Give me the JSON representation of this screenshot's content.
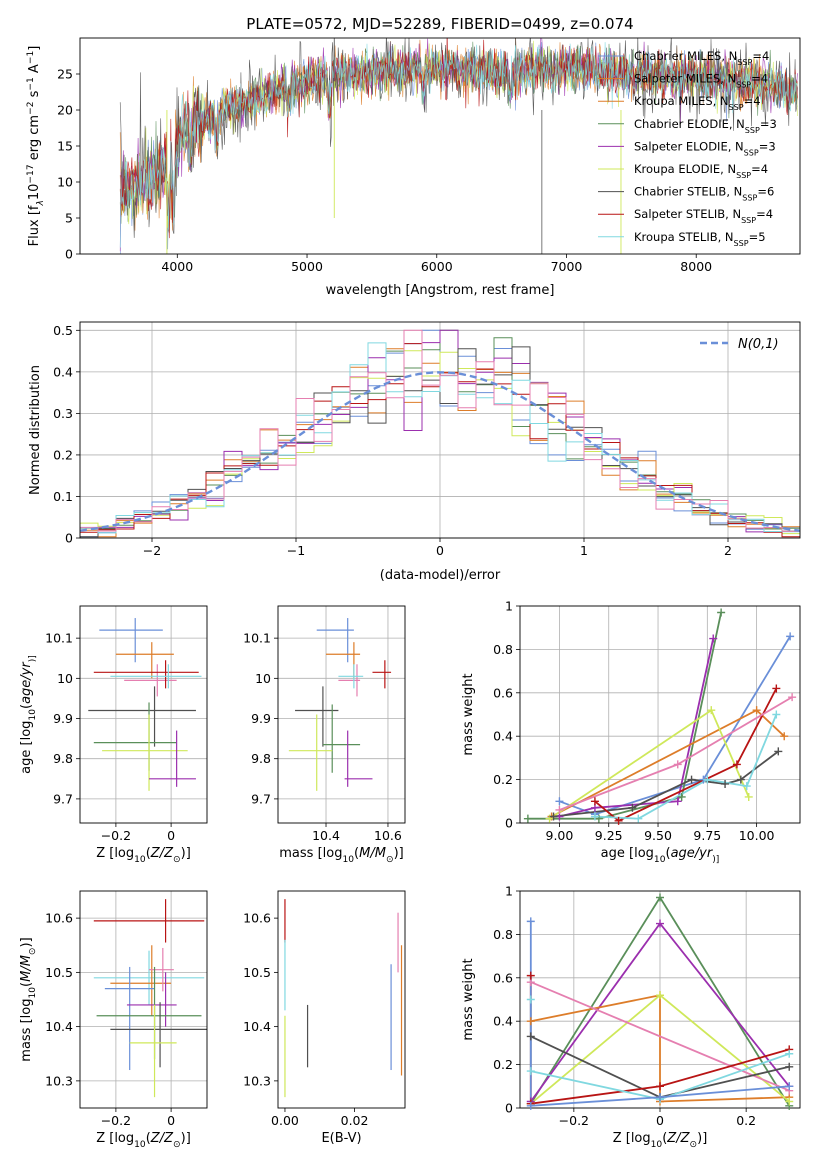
{
  "colors": {
    "blue": "#6a8fd8",
    "orange": "#dd7d2a",
    "green": "#5a8f5a",
    "purple": "#9b2fae",
    "yellow": "#cfe85a",
    "darkgray": "#505050",
    "red": "#b81414",
    "cyan": "#80d8e0",
    "pink": "#e57fb0"
  },
  "chart_data": [
    {
      "id": "spectrum",
      "type": "line",
      "title": "PLATE=0572, MJD=52289, FIBERID=0499, z=0.074",
      "xlabel": "wavelength [Angstrom, rest frame]",
      "ylabel_parts": [
        "Flux [f",
        "λ",
        "10",
        "−17",
        " erg cm",
        "−2",
        " s",
        "−1",
        " A",
        "−1",
        "]"
      ],
      "xlim": [
        3250,
        8800
      ],
      "ylim": [
        0,
        30
      ],
      "xticks": [
        4000,
        5000,
        6000,
        7000,
        8000
      ],
      "yticks": [
        0,
        5,
        10,
        15,
        20,
        25
      ],
      "grid": false,
      "legend_position": "top-right",
      "spectrum_anchors": {
        "x": [
          3560,
          3700,
          3850,
          3950,
          4050,
          4200,
          4400,
          4600,
          4800,
          5000,
          5300,
          5600,
          5900,
          6200,
          6500,
          6800,
          7100,
          7400,
          7700,
          8000,
          8300,
          8600,
          8780
        ],
        "y": [
          8.5,
          9.5,
          11,
          13,
          17,
          18.5,
          20.5,
          21.5,
          23,
          24,
          25,
          25.5,
          25.8,
          25.5,
          25,
          26,
          25.8,
          25.2,
          24.8,
          24.5,
          24,
          23.5,
          22.5
        ]
      },
      "series": [
        {
          "name_parts": [
            "Chabrier MILES, N",
            "SSP",
            "=4"
          ],
          "color": "blue"
        },
        {
          "name_parts": [
            "Salpeter MILES, N",
            "SSP",
            "=4"
          ],
          "color": "orange"
        },
        {
          "name_parts": [
            "Kroupa MILES, N",
            "SSP",
            "=4"
          ],
          "color": "orange"
        },
        {
          "name_parts": [
            "Chabrier ELODIE, N",
            "SSP",
            "=3"
          ],
          "color": "green"
        },
        {
          "name_parts": [
            "Salpeter ELODIE, N",
            "SSP",
            "=3"
          ],
          "color": "purple"
        },
        {
          "name_parts": [
            "Kroupa ELODIE, N",
            "SSP",
            "=4"
          ],
          "color": "yellow"
        },
        {
          "name_parts": [
            "Chabrier STELIB, N",
            "SSP",
            "=6"
          ],
          "color": "darkgray"
        },
        {
          "name_parts": [
            "Salpeter STELIB, N",
            "SSP",
            "=4"
          ],
          "color": "red"
        },
        {
          "name_parts": [
            "Kroupa STELIB, N",
            "SSP",
            "=5"
          ],
          "color": "cyan"
        }
      ]
    },
    {
      "id": "residuals",
      "type": "line",
      "xlabel": "(data-model)/error",
      "ylabel": "Normed distribution",
      "xlim": [
        -2.5,
        2.5
      ],
      "ylim": [
        0,
        0.52
      ],
      "xticks": [
        -2,
        -1,
        0,
        1,
        2
      ],
      "yticks": [
        0.0,
        0.1,
        0.2,
        0.3,
        0.4,
        0.5
      ],
      "grid": true,
      "legend_position": "top-right",
      "legend": "N(0,1)",
      "bin_edges_range": [
        -2.5,
        2.5
      ],
      "bins": 40,
      "normal_curve": {
        "color": "blue",
        "style": "dashed",
        "mean": 0,
        "sigma": 1
      }
    },
    {
      "id": "age-vs-Z",
      "type": "scatter",
      "xlabel_parts": [
        "Z [log",
        "10",
        "(",
        "Z/Z",
        "⊙",
        ")]"
      ],
      "ylabel_parts": [
        "age  [log",
        "10",
        "(",
        "age/yr",
        ")]"
      ],
      "xlim": [
        -0.33,
        0.13
      ],
      "ylim": [
        9.64,
        10.18
      ],
      "xticks": [
        -0.2,
        0.0
      ],
      "yticks": [
        9.7,
        9.8,
        9.9,
        10.0,
        10.1
      ],
      "grid": true,
      "points": [
        {
          "color": "blue",
          "x": -0.13,
          "y": 10.12,
          "xerr": [
            0.13,
            0.1
          ],
          "yerr": [
            0.08,
            0.03
          ]
        },
        {
          "color": "orange",
          "x": -0.07,
          "y": 10.06,
          "xerr": [
            0.13,
            0.08
          ],
          "yerr": [
            0.06,
            0.03
          ]
        },
        {
          "color": "pink",
          "x": -0.05,
          "y": 9.995,
          "xerr": [
            0.12,
            0.07
          ],
          "yerr": [
            0.04,
            0.04
          ]
        },
        {
          "color": "red",
          "x": -0.02,
          "y": 10.015,
          "xerr": [
            0.26,
            0.12
          ],
          "yerr": [
            0.04,
            0.03
          ]
        },
        {
          "color": "cyan",
          "x": -0.01,
          "y": 10.005,
          "xerr": [
            0.21,
            0.12
          ],
          "yerr": [
            0.03,
            0.03
          ]
        },
        {
          "color": "darkgray",
          "x": -0.06,
          "y": 9.92,
          "xerr": [
            0.24,
            0.15
          ],
          "yerr": [
            0.09,
            0.06
          ]
        },
        {
          "color": "green",
          "x": -0.08,
          "y": 9.84,
          "xerr": [
            0.2,
            0.1
          ],
          "yerr": [
            0.07,
            0.1
          ]
        },
        {
          "color": "yellow",
          "x": -0.08,
          "y": 9.82,
          "xerr": [
            0.17,
            0.14
          ],
          "yerr": [
            0.1,
            0.09
          ]
        },
        {
          "color": "purple",
          "x": 0.02,
          "y": 9.75,
          "xerr": [
            0.1,
            0.07
          ],
          "yerr": [
            0.02,
            0.12
          ]
        }
      ]
    },
    {
      "id": "age-vs-mass",
      "type": "scatter",
      "xlabel_parts": [
        "mass [log",
        "10",
        "(",
        "M/M",
        "⊙",
        ")]"
      ],
      "ylim": [
        9.64,
        10.18
      ],
      "xlim": [
        10.245,
        10.655
      ],
      "xticks": [
        10.4,
        10.6
      ],
      "yticks": [
        9.7,
        9.8,
        9.9,
        10.0,
        10.1
      ],
      "grid": true,
      "points": [
        {
          "color": "blue",
          "x": 10.47,
          "y": 10.12,
          "xerr": [
            0.1,
            0.02
          ],
          "yerr": [
            0.08,
            0.03
          ]
        },
        {
          "color": "orange",
          "x": 10.49,
          "y": 10.06,
          "xerr": [
            0.09,
            0.02
          ],
          "yerr": [
            0.06,
            0.03
          ]
        },
        {
          "color": "pink",
          "x": 10.5,
          "y": 9.995,
          "xerr": [
            0.06,
            0.01
          ],
          "yerr": [
            0.04,
            0.04
          ]
        },
        {
          "color": "red",
          "x": 10.59,
          "y": 10.015,
          "xerr": [
            0.04,
            0.02
          ],
          "yerr": [
            0.04,
            0.03
          ]
        },
        {
          "color": "cyan",
          "x": 10.49,
          "y": 10.005,
          "xerr": [
            0.05,
            0.03
          ],
          "yerr": [
            0.03,
            0.03
          ]
        },
        {
          "color": "darkgray",
          "x": 10.39,
          "y": 9.92,
          "xerr": [
            0.09,
            0.05
          ],
          "yerr": [
            0.09,
            0.06
          ]
        },
        {
          "color": "green",
          "x": 10.42,
          "y": 9.835,
          "xerr": [
            0.03,
            0.09
          ],
          "yerr": [
            0.07,
            0.1
          ]
        },
        {
          "color": "yellow",
          "x": 10.37,
          "y": 9.82,
          "xerr": [
            0.09,
            0.05
          ],
          "yerr": [
            0.1,
            0.09
          ]
        },
        {
          "color": "purple",
          "x": 10.47,
          "y": 9.75,
          "xerr": [
            0.01,
            0.08
          ],
          "yerr": [
            0.02,
            0.12
          ]
        }
      ]
    },
    {
      "id": "weight-vs-age",
      "type": "line",
      "xlabel_parts": [
        "age  [log",
        "10",
        "(",
        "age/yr",
        ")]"
      ],
      "ylabel": "mass weight",
      "xlim": [
        8.8,
        10.22
      ],
      "ylim": [
        0,
        1
      ],
      "xticks": [
        9.0,
        9.25,
        9.5,
        9.75,
        10.0
      ],
      "xtick_labels": [
        "9.00",
        "9.25",
        "9.50",
        "9.75",
        "10.00"
      ],
      "yticks": [
        0.0,
        0.2,
        0.4,
        0.6,
        0.8,
        1.0
      ],
      "grid": true,
      "series": [
        {
          "color": "blue",
          "x": [
            9.0,
            9.18,
            9.73,
            10.17
          ],
          "y": [
            0.1,
            0.04,
            0.2,
            0.86
          ]
        },
        {
          "color": "green",
          "x": [
            8.84,
            9.2,
            9.62,
            9.82
          ],
          "y": [
            0.02,
            0.02,
            0.12,
            0.97
          ]
        },
        {
          "color": "purple",
          "x": [
            9.0,
            9.18,
            9.6,
            9.78
          ],
          "y": [
            0.03,
            0.07,
            0.1,
            0.85
          ]
        },
        {
          "color": "orange",
          "x": [
            8.96,
            10.0,
            10.14
          ],
          "y": [
            0.03,
            0.52,
            0.4
          ]
        },
        {
          "color": "yellow",
          "x": [
            8.95,
            9.77,
            9.96
          ],
          "y": [
            0.02,
            0.52,
            0.12
          ]
        },
        {
          "color": "darkgray",
          "x": [
            8.97,
            9.37,
            9.67,
            9.84,
            9.92,
            10.11
          ],
          "y": [
            0.03,
            0.07,
            0.2,
            0.18,
            0.2,
            0.33
          ]
        },
        {
          "color": "red",
          "x": [
            9.18,
            9.3,
            9.9,
            10.1
          ],
          "y": [
            0.1,
            0.01,
            0.27,
            0.62
          ]
        },
        {
          "color": "cyan",
          "x": [
            9.18,
            9.4,
            9.75,
            9.95,
            10.1
          ],
          "y": [
            0.03,
            0.02,
            0.2,
            0.17,
            0.5
          ]
        },
        {
          "color": "pink",
          "x": [
            9.0,
            9.6,
            10.18
          ],
          "y": [
            0.06,
            0.27,
            0.58
          ]
        }
      ]
    },
    {
      "id": "mass-vs-Z",
      "type": "scatter",
      "xlabel_parts": [
        "Z [log",
        "10",
        "(",
        "Z/Z",
        "⊙",
        ")]"
      ],
      "ylabel_parts": [
        "mass [log",
        "10",
        "(",
        "M/M",
        "⊙",
        ")]"
      ],
      "xlim": [
        -0.33,
        0.13
      ],
      "ylim": [
        10.25,
        10.65
      ],
      "xticks": [
        -0.2,
        0.0
      ],
      "yticks": [
        10.3,
        10.4,
        10.5,
        10.6
      ],
      "grid": true,
      "points": [
        {
          "color": "red",
          "x": -0.02,
          "y": 10.595,
          "xerr": [
            0.26,
            0.14
          ],
          "yerr": [
            0.04,
            0.04
          ]
        },
        {
          "color": "cyan",
          "x": -0.08,
          "y": 10.49,
          "xerr": [
            0.2,
            0.2
          ],
          "yerr": [
            0.05,
            0.05
          ]
        },
        {
          "color": "orange",
          "x": -0.07,
          "y": 10.48,
          "xerr": [
            0.15,
            0.07
          ],
          "yerr": [
            0.06,
            0.07
          ]
        },
        {
          "color": "blue",
          "x": -0.15,
          "y": 10.47,
          "xerr": [
            0.09,
            0.09
          ],
          "yerr": [
            0.15,
            0.04
          ]
        },
        {
          "color": "pink",
          "x": -0.03,
          "y": 10.505,
          "xerr": [
            0.05,
            0.04
          ],
          "yerr": [
            0.04,
            0.04
          ]
        },
        {
          "color": "purple",
          "x": -0.02,
          "y": 10.44,
          "xerr": [
            0.14,
            0.04
          ],
          "yerr": [
            0.04,
            0.06
          ]
        },
        {
          "color": "green",
          "x": -0.06,
          "y": 10.42,
          "xerr": [
            0.21,
            0.17
          ],
          "yerr": [
            0.08,
            0.09
          ]
        },
        {
          "color": "darkgray",
          "x": -0.04,
          "y": 10.395,
          "xerr": [
            0.18,
            0.17
          ],
          "yerr": [
            0.07,
            0.05
          ]
        },
        {
          "color": "yellow",
          "x": -0.06,
          "y": 10.37,
          "xerr": [
            0.09,
            0.08
          ],
          "yerr": [
            0.1,
            0.07
          ]
        }
      ]
    },
    {
      "id": "mass-vs-ebv",
      "type": "scatter",
      "xlabel": "E(B-V)",
      "xlim": [
        -0.002,
        0.0345
      ],
      "ylim": [
        10.25,
        10.65
      ],
      "xticks": [
        0.0,
        0.02
      ],
      "xtick_labels": [
        "0.00",
        "0.02"
      ],
      "yticks": [
        10.3,
        10.4,
        10.5,
        10.6
      ],
      "grid": false,
      "points": [
        {
          "color": "red",
          "x": 0.0,
          "y": 10.595,
          "yerr": [
            0.04,
            0.04
          ]
        },
        {
          "color": "cyan",
          "x": 0.0,
          "y": 10.49,
          "yerr": [
            0.06,
            0.07
          ]
        },
        {
          "color": "yellow",
          "x": 0.0,
          "y": 10.37,
          "yerr": [
            0.1,
            0.05
          ]
        },
        {
          "color": "darkgray",
          "x": 0.0065,
          "y": 10.395,
          "yerr": [
            0.07,
            0.045
          ]
        },
        {
          "color": "blue",
          "x": 0.0305,
          "y": 10.42,
          "yerr": [
            0.1,
            0.095
          ]
        },
        {
          "color": "orange",
          "x": 0.0335,
          "y": 10.43,
          "yerr": [
            0.12,
            0.12
          ]
        },
        {
          "color": "pink",
          "x": 0.0325,
          "y": 10.53,
          "yerr": [
            0.03,
            0.08
          ]
        }
      ]
    },
    {
      "id": "weight-vs-Z",
      "type": "line",
      "xlabel_parts": [
        "Z [log",
        "10",
        "(",
        "Z/Z",
        "⊙",
        ")]"
      ],
      "ylabel": "mass weight",
      "xlim": [
        -0.325,
        0.325
      ],
      "ylim": [
        0,
        1
      ],
      "xticks": [
        -0.2,
        0.0,
        0.2
      ],
      "yticks": [
        0.0,
        0.2,
        0.4,
        0.6,
        0.8,
        1.0
      ],
      "grid": true,
      "series": [
        {
          "color": "green",
          "x": [
            -0.3,
            0.0,
            0.3
          ],
          "y": [
            0.02,
            0.97,
            0.01
          ]
        },
        {
          "color": "purple",
          "x": [
            -0.3,
            0.0,
            0.3
          ],
          "y": [
            0.03,
            0.85,
            0.1
          ]
        },
        {
          "color": "orange",
          "x": [
            -0.3,
            0.0,
            0.0,
            0.3
          ],
          "y": [
            0.4,
            0.52,
            0.03,
            0.05
          ]
        },
        {
          "color": "yellow",
          "x": [
            -0.3,
            0.0,
            0.3
          ],
          "y": [
            0.02,
            0.52,
            0.03
          ]
        },
        {
          "color": "pink",
          "x": [
            -0.3,
            0.3
          ],
          "y": [
            0.58,
            0.08
          ]
        },
        {
          "color": "darkgray",
          "x": [
            -0.3,
            0.0,
            0.3
          ],
          "y": [
            0.33,
            0.05,
            0.19
          ]
        },
        {
          "color": "red",
          "x": [
            -0.3,
            -0.3,
            0.0,
            0.3
          ],
          "y": [
            0.61,
            0.02,
            0.1,
            0.27
          ]
        },
        {
          "color": "cyan",
          "x": [
            -0.3,
            -0.3,
            0.0,
            0.3
          ],
          "y": [
            0.5,
            0.17,
            0.04,
            0.25
          ]
        },
        {
          "color": "blue",
          "x": [
            -0.3,
            -0.3,
            0.0,
            0.3
          ],
          "y": [
            0.86,
            0.01,
            0.05,
            0.1
          ]
        }
      ]
    }
  ]
}
